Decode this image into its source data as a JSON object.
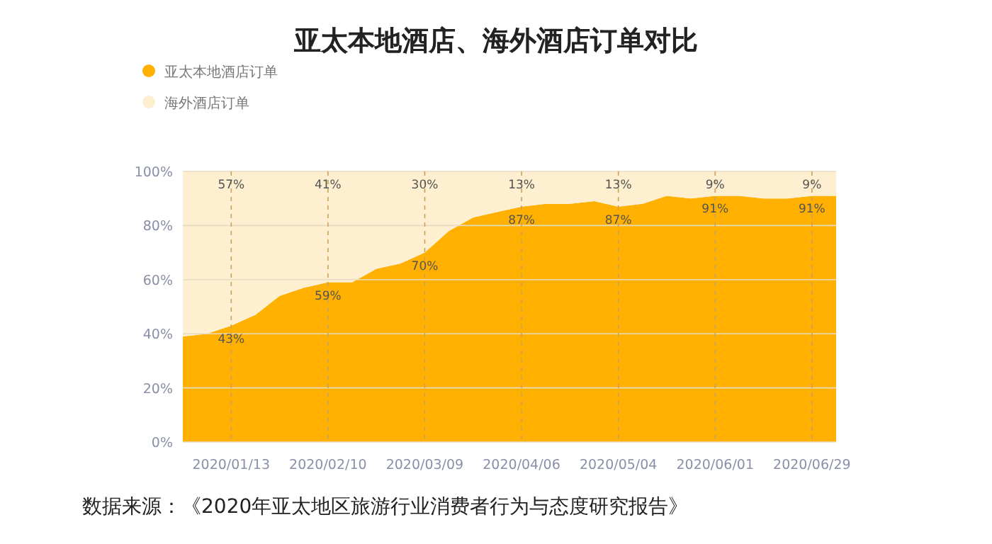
{
  "chart_data": {
    "type": "area",
    "stacked": true,
    "title": "亚太本地酒店、海外酒店订单对比",
    "x": [
      "2019-12-30",
      "2020-01-06",
      "2020-01-13",
      "2020-01-20",
      "2020-01-27",
      "2020-02-03",
      "2020-02-10",
      "2020-02-17",
      "2020-02-24",
      "2020-03-02",
      "2020-03-09",
      "2020-03-16",
      "2020-03-23",
      "2020-03-30",
      "2020-04-06",
      "2020-04-13",
      "2020-04-20",
      "2020-04-27",
      "2020-05-04",
      "2020-05-11",
      "2020-05-18",
      "2020-05-25",
      "2020-06-01",
      "2020-06-08",
      "2020-06-15",
      "2020-06-22",
      "2020-06-29",
      "2020-07-06"
    ],
    "series": [
      {
        "name": "亚太本地酒店订单",
        "color": "#ffb000",
        "values": [
          39,
          40,
          43,
          47,
          54,
          57,
          59,
          59,
          64,
          66,
          70,
          78,
          83,
          85,
          87,
          88,
          88,
          89,
          87,
          88,
          91,
          90,
          91,
          91,
          90,
          90,
          91,
          91
        ],
        "value_labels": [
          null,
          null,
          "43%",
          null,
          null,
          null,
          "59%",
          null,
          null,
          null,
          "70%",
          null,
          null,
          null,
          "87%",
          null,
          null,
          null,
          "87%",
          null,
          null,
          null,
          "91%",
          null,
          null,
          null,
          "91%",
          null
        ]
      },
      {
        "name": "海外酒店订单",
        "color": "#fdefcf",
        "values": [
          61,
          60,
          57,
          53,
          46,
          43,
          41,
          41,
          36,
          34,
          30,
          22,
          17,
          15,
          13,
          12,
          12,
          11,
          13,
          12,
          9,
          10,
          9,
          9,
          10,
          10,
          9,
          9
        ],
        "value_labels": [
          null,
          null,
          "57%",
          null,
          null,
          null,
          "41%",
          null,
          null,
          null,
          "30%",
          null,
          null,
          null,
          "13%",
          null,
          null,
          null,
          "13%",
          null,
          null,
          null,
          "9%",
          null,
          null,
          null,
          "9%",
          null
        ]
      }
    ],
    "xlim": [
      "2019-12-30",
      "2020-07-06"
    ],
    "xticks": [
      {
        "value": "2020-01-13",
        "label": "2020/01/13"
      },
      {
        "value": "2020-02-10",
        "label": "2020/02/10"
      },
      {
        "value": "2020-03-09",
        "label": "2020/03/09"
      },
      {
        "value": "2020-04-06",
        "label": "2020/04/06"
      },
      {
        "value": "2020-05-04",
        "label": "2020/05/04"
      },
      {
        "value": "2020-06-01",
        "label": "2020/06/01"
      },
      {
        "value": "2020-06-29",
        "label": "2020/06/29"
      }
    ],
    "ylim": [
      0,
      100
    ],
    "yticks": [
      {
        "value": 0,
        "label": "0%"
      },
      {
        "value": 20,
        "label": "20%"
      },
      {
        "value": 40,
        "label": "40%"
      },
      {
        "value": 60,
        "label": "60%"
      },
      {
        "value": 80,
        "label": "80%"
      },
      {
        "value": 100,
        "label": "100%"
      }
    ],
    "grid": true,
    "legend": "top left",
    "annotations": [
      "数据来源：《2020年亚太地区旅游行业消费者行为与态度研究报告》"
    ]
  }
}
